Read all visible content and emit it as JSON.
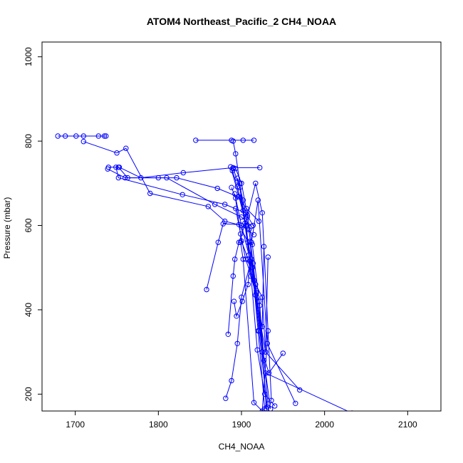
{
  "chart_data": {
    "type": "line",
    "title": "ATOM4 Northeast_Pacific_2 CH4_NOAA",
    "xlabel": "CH4_NOAA",
    "ylabel": "Pressure (mbar)",
    "xlim": [
      1660,
      2140
    ],
    "ylim": [
      1035,
      160
    ],
    "y_inverted": true,
    "grid": false,
    "x_ticks": [
      1700,
      1800,
      1900,
      2000,
      2100
    ],
    "y_ticks": [
      200,
      400,
      600,
      800,
      1000
    ],
    "color": "#0000ff",
    "marker": "open-circle",
    "series": [
      {
        "x": [
          1679,
          1688,
          1701,
          1710,
          1728,
          1735,
          1737
        ],
        "y": [
          812,
          812,
          812,
          812,
          812,
          812,
          812
        ]
      },
      {
        "x": [
          1710,
          1750,
          1761,
          1790,
          1860,
          1880,
          1900,
          1915
        ],
        "y": [
          799,
          772,
          783,
          676,
          645,
          610,
          600,
          578
        ]
      },
      {
        "x": [
          1739,
          1760,
          1800,
          1822,
          1871,
          1896,
          1906,
          1921
        ],
        "y": [
          734,
          713,
          713,
          713,
          688,
          668,
          640,
          610
        ]
      },
      {
        "x": [
          1740,
          1752,
          1763,
          1810,
          1868,
          1900,
          1912
        ],
        "y": [
          738,
          738,
          713,
          713,
          650,
          620,
          598
        ]
      },
      {
        "x": [
          1749,
          1752,
          1829,
          1880,
          1905,
          1914
        ],
        "y": [
          738,
          713,
          673,
          650,
          630,
          600
        ]
      },
      {
        "x": [
          1753,
          1779,
          1830,
          1890,
          1922
        ],
        "y": [
          738,
          713,
          725,
          737,
          737
        ]
      },
      {
        "x": [
          1845,
          1888,
          1902,
          1915
        ],
        "y": [
          802,
          802,
          802,
          802
        ]
      },
      {
        "x": [
          1890,
          1893,
          1898,
          1905,
          1913,
          1920,
          1928
        ],
        "y": [
          800,
          770,
          700,
          600,
          500,
          350,
          165
        ]
      },
      {
        "x": [
          1858,
          1872,
          1878,
          1897,
          1908,
          1915,
          1925,
          1930
        ],
        "y": [
          448,
          560,
          604,
          602,
          560,
          470,
          300,
          165
        ]
      },
      {
        "x": [
          1881,
          1888,
          1895,
          1900,
          1912,
          1918,
          1929,
          2033
        ],
        "y": [
          190,
          232,
          320,
          430,
          520,
          440,
          250,
          155
        ]
      },
      {
        "x": [
          1884,
          1890,
          1892,
          1897,
          1907,
          1917,
          1925,
          1936
        ],
        "y": [
          342,
          480,
          520,
          560,
          620,
          700,
          630,
          185
        ]
      },
      {
        "x": [
          1891,
          1894,
          1901,
          1908,
          1912,
          1920,
          1931,
          1965
        ],
        "y": [
          420,
          385,
          420,
          460,
          560,
          660,
          320,
          178
        ]
      },
      {
        "x": [
          1893,
          1899,
          1905,
          1918,
          1925,
          1933,
          1950
        ],
        "y": [
          640,
          580,
          520,
          445,
          300,
          250,
          297
        ]
      },
      {
        "x": [
          1888,
          1893,
          1900,
          1909,
          1917,
          1929,
          1970
        ],
        "y": [
          690,
          665,
          600,
          530,
          435,
          300,
          210
        ]
      },
      {
        "x": [
          1893,
          1900,
          1907,
          1913,
          1922,
          1927,
          1935
        ],
        "y": [
          735,
          700,
          625,
          555,
          410,
          280,
          165
        ]
      },
      {
        "x": [
          1889,
          1895,
          1902,
          1910,
          1919,
          1928,
          1940
        ],
        "y": [
          730,
          692,
          635,
          515,
          305,
          200,
          172
        ]
      },
      {
        "x": [
          1895,
          1902,
          1909,
          1914,
          1923,
          1930
        ],
        "y": [
          712,
          660,
          590,
          510,
          360,
          165
        ]
      },
      {
        "x": [
          1890,
          1898,
          1904,
          1913,
          1921,
          1931
        ],
        "y": [
          735,
          690,
          605,
          500,
          350,
          170
        ]
      },
      {
        "x": [
          1887,
          1897,
          1906,
          1911,
          1921,
          1932
        ],
        "y": [
          739,
          668,
          598,
          480,
          420,
          177
        ]
      },
      {
        "x": [
          1899,
          1902,
          1915,
          1925,
          1932
        ],
        "y": [
          560,
          520,
          180,
          160,
          350
        ]
      },
      {
        "x": [
          1910,
          1917,
          1925,
          1929,
          1932
        ],
        "y": [
          562,
          460,
          430,
          300,
          525
        ]
      },
      {
        "x": [
          1892,
          1900,
          1908,
          1917,
          1925,
          1927
        ],
        "y": [
          675,
          563,
          520,
          435,
          360,
          550
        ]
      }
    ]
  }
}
